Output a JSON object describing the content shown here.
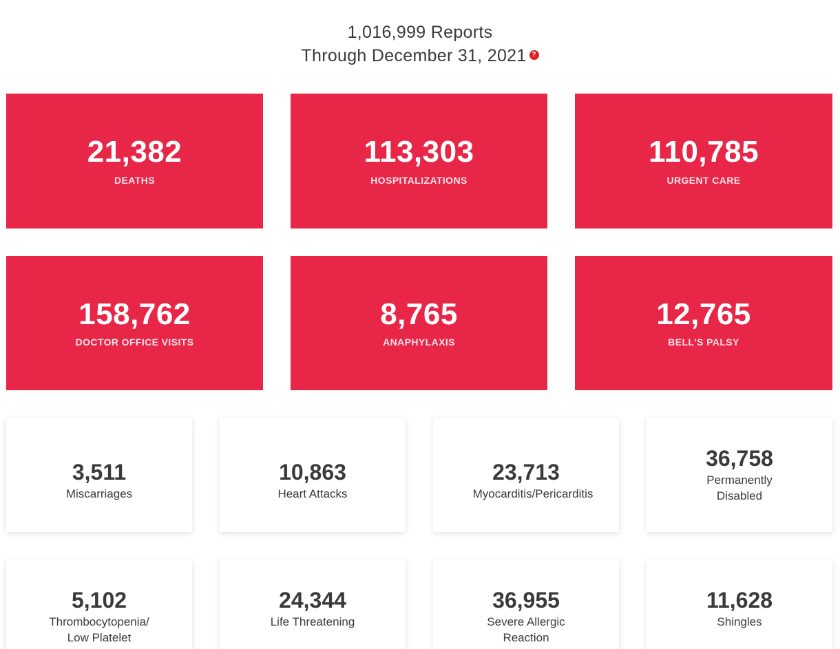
{
  "header": {
    "reports_line": "1,016,999 Reports",
    "through_line": "Through December 31, 2021",
    "help_icon_glyph": "?"
  },
  "red_stats": [
    {
      "value": "21,382",
      "label": "DEATHS"
    },
    {
      "value": "113,303",
      "label": "HOSPITALIZATIONS"
    },
    {
      "value": "110,785",
      "label": "URGENT CARE"
    },
    {
      "value": "158,762",
      "label": "DOCTOR OFFICE VISITS"
    },
    {
      "value": "8,765",
      "label": "ANAPHYLAXIS"
    },
    {
      "value": "12,765",
      "label": "BELL'S PALSY"
    }
  ],
  "white_stats": [
    {
      "value": "3,511",
      "label": "Miscarriages"
    },
    {
      "value": "10,863",
      "label": "Heart Attacks"
    },
    {
      "value": "23,713",
      "label": "Myocarditis/Pericarditis"
    },
    {
      "value": "36,758",
      "label": "Permanently Disabled"
    },
    {
      "value": "5,102",
      "label": "Thrombocytopenia/ Low Platelet"
    },
    {
      "value": "24,344",
      "label": "Life Threatening"
    },
    {
      "value": "36,955",
      "label": "Severe Allergic Reaction"
    },
    {
      "value": "11,628",
      "label": "Shingles"
    }
  ],
  "colors": {
    "accent_red": "#e82648",
    "help_red": "#e02020",
    "text_dark": "#3a3a3a"
  }
}
